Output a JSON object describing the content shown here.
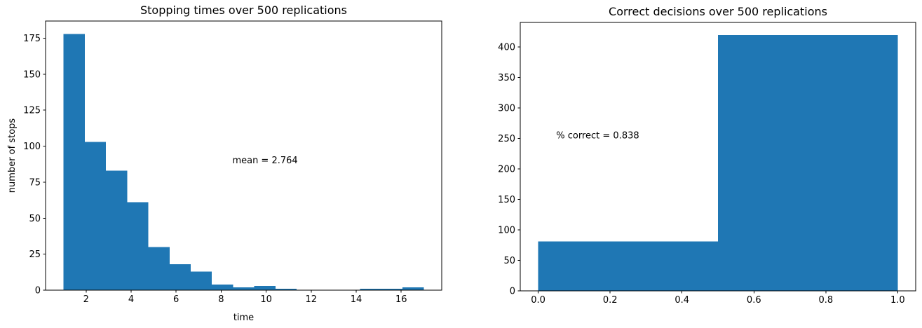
{
  "figure": {
    "background_color": "#ffffff",
    "bar_color": "#1f77b4",
    "axis_color": "#000000",
    "text_color": "#000000"
  },
  "chart_data": [
    {
      "type": "bar",
      "subtype": "histogram",
      "title": "Stopping times over 500 replications",
      "xlabel": "time",
      "ylabel": "number of stops",
      "annotation": {
        "text": "mean = 2.764",
        "x": 8.5,
        "y": 88
      },
      "bin_start": 1,
      "bin_end": 17,
      "bin_count": 17,
      "counts": [
        178,
        103,
        83,
        61,
        30,
        18,
        13,
        4,
        2,
        3,
        1,
        0,
        0,
        0,
        1,
        1,
        2
      ],
      "total_replications": 500,
      "mean_value": 2.764,
      "xlim": [
        0.2,
        17.8
      ],
      "ylim": [
        0,
        186.9
      ],
      "xticks": [
        2,
        4,
        6,
        8,
        10,
        12,
        14,
        16
      ],
      "xtick_labels": [
        "2",
        "4",
        "6",
        "8",
        "10",
        "12",
        "14",
        "16"
      ],
      "yticks": [
        0,
        25,
        50,
        75,
        100,
        125,
        150,
        175
      ],
      "ytick_labels": [
        "0",
        "25",
        "50",
        "75",
        "100",
        "125",
        "150",
        "175"
      ],
      "grid": false,
      "legend": null
    },
    {
      "type": "bar",
      "subtype": "histogram",
      "title": "Correct decisions over 500 replications",
      "xlabel": "",
      "ylabel": "",
      "annotation": {
        "text": "% correct = 0.838",
        "x": 0.05,
        "y": 250
      },
      "bin_start": 0,
      "bin_end": 1,
      "bin_count": 2,
      "counts": [
        81,
        419
      ],
      "total_replications": 500,
      "percent_correct": 0.838,
      "xlim": [
        -0.05,
        1.05
      ],
      "ylim": [
        0,
        439.95
      ],
      "xticks": [
        0.0,
        0.2,
        0.4,
        0.6,
        0.8,
        1.0
      ],
      "xtick_labels": [
        "0.0",
        "0.2",
        "0.4",
        "0.6",
        "0.8",
        "1.0"
      ],
      "yticks": [
        0,
        50,
        100,
        150,
        200,
        250,
        300,
        350,
        400
      ],
      "ytick_labels": [
        "0",
        "50",
        "100",
        "150",
        "200",
        "250",
        "300",
        "350",
        "400"
      ],
      "grid": false,
      "legend": null
    }
  ]
}
